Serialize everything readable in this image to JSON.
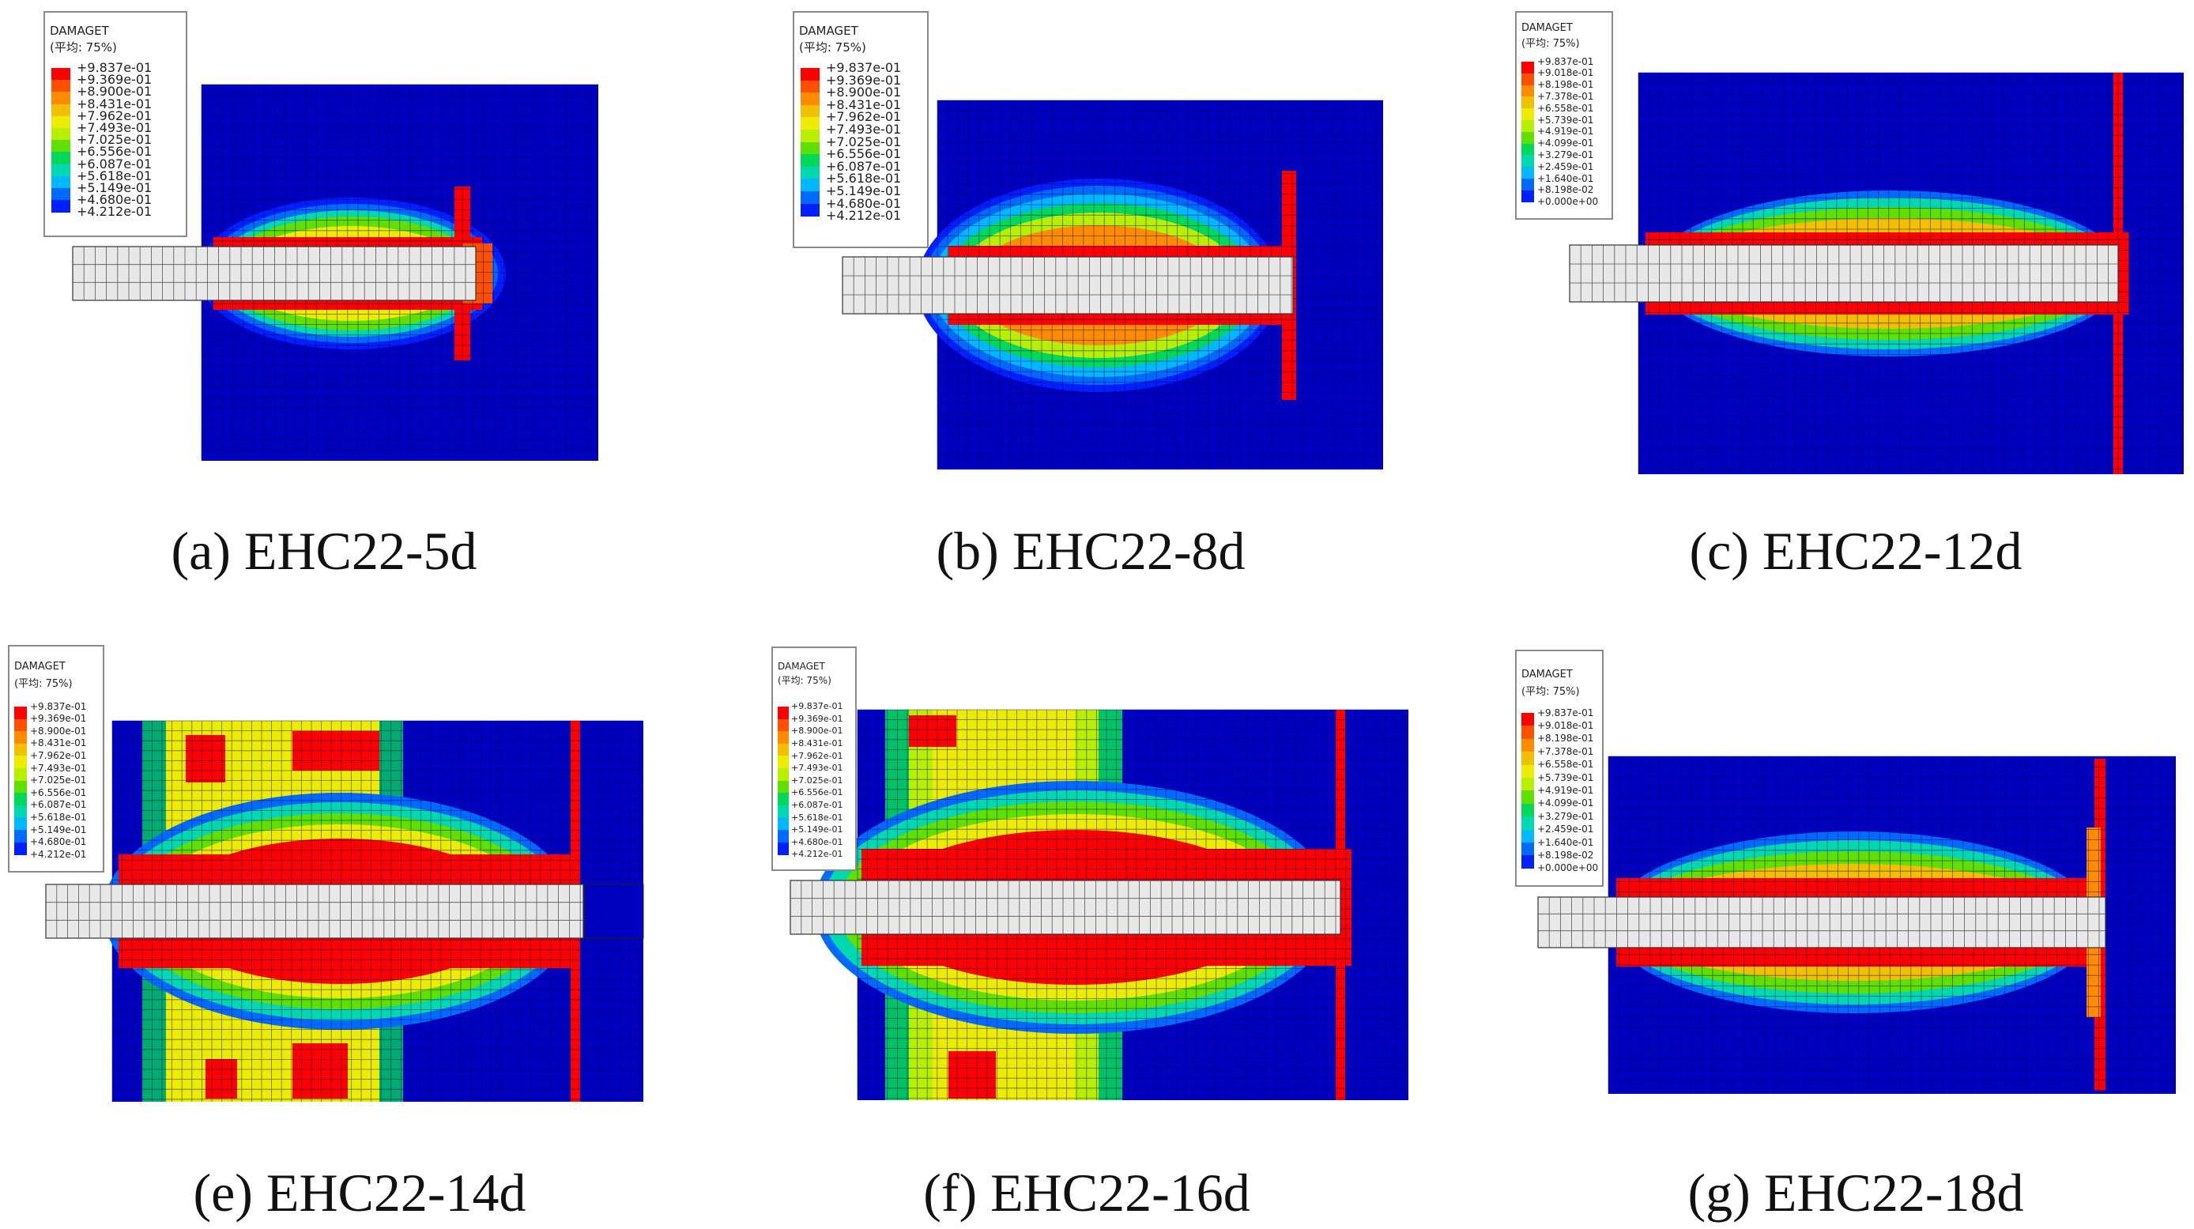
{
  "colors": {
    "scale": [
      "#ff0000",
      "#ff5000",
      "#ff8c00",
      "#f2c000",
      "#ecec00",
      "#b8ee00",
      "#60e000",
      "#00d85a",
      "#00d8b0",
      "#00b8ff",
      "#006aff",
      "#0020ff",
      "#0000c0"
    ],
    "background": "#0000c0",
    "rebar": "#e8e8e8"
  },
  "panels": [
    {
      "id": "a",
      "caption": "(a) EHC22-5d",
      "legend": {
        "title": "DAMAGET",
        "subtitle": "(平均: 75%)",
        "values": [
          "+9.837e-01",
          "+9.369e-01",
          "+8.900e-01",
          "+8.431e-01",
          "+7.962e-01",
          "+7.493e-01",
          "+7.025e-01",
          "+6.556e-01",
          "+6.087e-01",
          "+5.618e-01",
          "+5.149e-01",
          "+4.680e-01",
          "+4.212e-01"
        ]
      }
    },
    {
      "id": "b",
      "caption": "(b) EHC22-8d",
      "legend": {
        "title": "DAMAGET",
        "subtitle": "(平均: 75%)",
        "values": [
          "+9.837e-01",
          "+9.369e-01",
          "+8.900e-01",
          "+8.431e-01",
          "+7.962e-01",
          "+7.493e-01",
          "+7.025e-01",
          "+6.556e-01",
          "+6.087e-01",
          "+5.618e-01",
          "+5.149e-01",
          "+4.680e-01",
          "+4.212e-01"
        ]
      }
    },
    {
      "id": "c",
      "caption": "(c) EHC22-12d",
      "legend": {
        "title": "DAMAGET",
        "subtitle": "(平均: 75%)",
        "values": [
          "+9.837e-01",
          "+9.018e-01",
          "+8.198e-01",
          "+7.378e-01",
          "+6.558e-01",
          "+5.739e-01",
          "+4.919e-01",
          "+4.099e-01",
          "+3.279e-01",
          "+2.459e-01",
          "+1.640e-01",
          "+8.198e-02",
          "+0.000e+00"
        ]
      }
    },
    {
      "id": "e",
      "caption": "(e) EHC22-14d",
      "legend": {
        "title": "DAMAGET",
        "subtitle": "(平均: 75%)",
        "values": [
          "+9.837e-01",
          "+9.369e-01",
          "+8.900e-01",
          "+8.431e-01",
          "+7.962e-01",
          "+7.493e-01",
          "+7.025e-01",
          "+6.556e-01",
          "+6.087e-01",
          "+5.618e-01",
          "+5.149e-01",
          "+4.680e-01",
          "+4.212e-01"
        ]
      }
    },
    {
      "id": "f",
      "caption": "(f) EHC22-16d",
      "legend": {
        "title": "DAMAGET",
        "subtitle": "(平均: 75%)",
        "values": [
          "+9.837e-01",
          "+9.369e-01",
          "+8.900e-01",
          "+8.431e-01",
          "+7.962e-01",
          "+7.493e-01",
          "+7.025e-01",
          "+6.556e-01",
          "+6.087e-01",
          "+5.618e-01",
          "+5.149e-01",
          "+4.680e-01",
          "+4.212e-01"
        ]
      }
    },
    {
      "id": "g",
      "caption": "(g) EHC22-18d",
      "legend": {
        "title": "DAMAGET",
        "subtitle": "(平均: 75%)",
        "values": [
          "+9.837e-01",
          "+9.018e-01",
          "+8.198e-01",
          "+7.378e-01",
          "+6.558e-01",
          "+5.739e-01",
          "+4.919e-01",
          "+4.099e-01",
          "+3.279e-01",
          "+2.459e-01",
          "+1.640e-01",
          "+8.198e-02",
          "+0.000e+00"
        ]
      }
    }
  ]
}
